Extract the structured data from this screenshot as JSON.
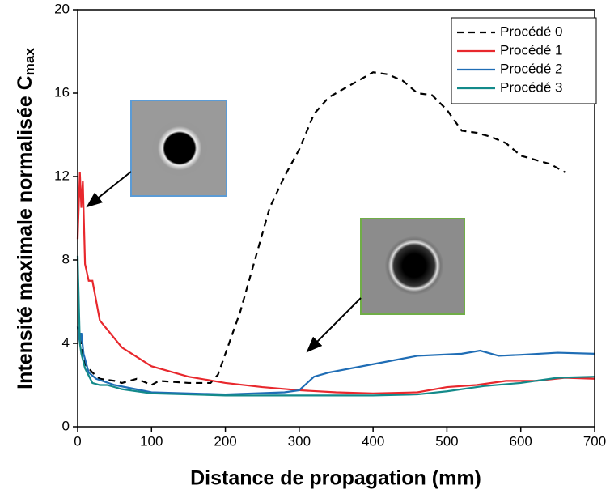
{
  "chart_data": {
    "type": "line",
    "x_label": "Distance de propagation (mm)",
    "y_label": "Intensité maximale normalisée C",
    "y_label_subscript": "max",
    "xlim": [
      0,
      700
    ],
    "xticks": [
      0,
      100,
      200,
      300,
      400,
      500,
      600,
      700
    ],
    "ylim": [
      0,
      20
    ],
    "yticks": [
      0,
      4,
      8,
      12,
      16,
      20
    ],
    "legend": "upper right",
    "series": [
      {
        "name": "Procédé 0",
        "color": "#000000",
        "dash": true,
        "x": [
          0,
          10,
          20,
          30,
          50,
          60,
          80,
          100,
          110,
          150,
          180,
          190,
          200,
          220,
          240,
          260,
          280,
          300,
          320,
          340,
          360,
          380,
          400,
          420,
          440,
          460,
          480,
          500,
          520,
          540,
          560,
          580,
          600,
          620,
          640,
          660
        ],
        "values": [
          4.8,
          3.0,
          2.6,
          2.3,
          2.2,
          2.1,
          2.3,
          2.0,
          2.2,
          2.1,
          2.1,
          2.5,
          3.5,
          5.5,
          8.0,
          10.5,
          12.0,
          13.3,
          15.0,
          15.8,
          16.2,
          16.6,
          17.0,
          16.9,
          16.6,
          16.0,
          15.9,
          15.2,
          14.2,
          14.1,
          13.9,
          13.6,
          13.0,
          12.8,
          12.6,
          12.2
        ]
      },
      {
        "name": "Procédé 1",
        "color": "#e8282d",
        "dash": false,
        "x": [
          0,
          3,
          5,
          7,
          10,
          15,
          20,
          30,
          60,
          100,
          150,
          200,
          250,
          300,
          350,
          400,
          460,
          500,
          540,
          580,
          620,
          660,
          700
        ],
        "values": [
          9.0,
          12.2,
          10.5,
          11.8,
          7.8,
          7.0,
          7.0,
          5.1,
          3.8,
          2.9,
          2.4,
          2.1,
          1.9,
          1.75,
          1.65,
          1.6,
          1.65,
          1.9,
          2.0,
          2.2,
          2.2,
          2.35,
          2.3
        ]
      },
      {
        "name": "Procédé 2",
        "color": "#1f6db5",
        "dash": false,
        "x": [
          0,
          3,
          5,
          8,
          15,
          25,
          50,
          100,
          200,
          280,
          300,
          320,
          340,
          400,
          460,
          520,
          545,
          570,
          600,
          650,
          700
        ],
        "values": [
          4.8,
          4.0,
          4.5,
          3.5,
          2.6,
          2.3,
          2.0,
          1.65,
          1.55,
          1.65,
          1.75,
          2.4,
          2.6,
          3.0,
          3.4,
          3.5,
          3.65,
          3.4,
          3.45,
          3.55,
          3.5
        ]
      },
      {
        "name": "Procédé 3",
        "color": "#138a8a",
        "dash": false,
        "x": [
          0,
          3,
          5,
          10,
          20,
          30,
          40,
          60,
          100,
          200,
          300,
          400,
          460,
          500,
          550,
          600,
          650,
          700
        ],
        "values": [
          8.2,
          4.0,
          3.5,
          2.8,
          2.1,
          2.0,
          2.0,
          1.8,
          1.6,
          1.5,
          1.5,
          1.5,
          1.55,
          1.7,
          1.95,
          2.1,
          2.35,
          2.4
        ]
      }
    ]
  }
}
